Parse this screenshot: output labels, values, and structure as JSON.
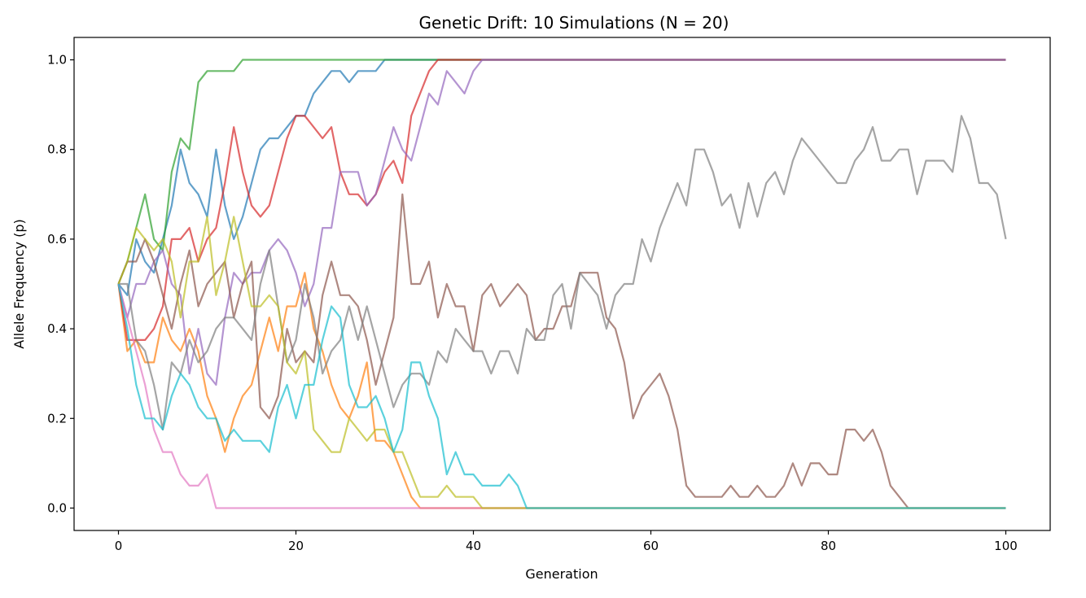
{
  "chart_data": {
    "type": "line",
    "title": "Genetic Drift: 10 Simulations (N = 20)",
    "xlabel": "Generation",
    "ylabel": "Allele Frequency (p)",
    "xlim": [
      -5,
      105
    ],
    "ylim": [
      -0.05,
      1.05
    ],
    "xticks": [
      0,
      20,
      40,
      60,
      80,
      100
    ],
    "xtick_labels": [
      "0",
      "20",
      "40",
      "60",
      "80",
      "100"
    ],
    "yticks": [
      0,
      0.2,
      0.4,
      0.6,
      0.8,
      1.0
    ],
    "ytick_labels": [
      "0.0",
      "0.2",
      "0.4",
      "0.6",
      "0.8",
      "1.0"
    ],
    "grid": false,
    "line_alpha": 0.7,
    "x_start": 0,
    "x_step": 1,
    "series": [
      {
        "color": "#1f77b4",
        "values": [
          0.5,
          0.475,
          0.6,
          0.55,
          0.525,
          0.6,
          0.675,
          0.8,
          0.725,
          0.7,
          0.65,
          0.8,
          0.675,
          0.6,
          0.65,
          0.725,
          0.8,
          0.825,
          0.825,
          0.85,
          0.875,
          0.875,
          0.925,
          0.95,
          0.975,
          0.975,
          0.95,
          0.975,
          0.975,
          0.975,
          1,
          1,
          1,
          1,
          1,
          1,
          1,
          1,
          1,
          1,
          1,
          1,
          1,
          1,
          1,
          1,
          1,
          1,
          1,
          1,
          1,
          1,
          1,
          1,
          1,
          1,
          1,
          1,
          1,
          1,
          1,
          1,
          1,
          1,
          1,
          1,
          1,
          1,
          1,
          1,
          1,
          1,
          1,
          1,
          1,
          1,
          1,
          1,
          1,
          1,
          1,
          1,
          1,
          1,
          1,
          1,
          1,
          1,
          1,
          1,
          1,
          1,
          1,
          1,
          1,
          1,
          1,
          1,
          1,
          1,
          1
        ]
      },
      {
        "color": "#ff7f0e",
        "values": [
          0.5,
          0.35,
          0.375,
          0.325,
          0.325,
          0.425,
          0.375,
          0.35,
          0.4,
          0.35,
          0.25,
          0.2,
          0.125,
          0.2,
          0.25,
          0.275,
          0.35,
          0.425,
          0.35,
          0.45,
          0.45,
          0.525,
          0.4,
          0.35,
          0.275,
          0.225,
          0.2,
          0.25,
          0.325,
          0.15,
          0.15,
          0.125,
          0.075,
          0.025,
          0,
          0,
          0,
          0,
          0,
          0,
          0,
          0,
          0,
          0,
          0,
          0,
          0,
          0,
          0,
          0,
          0,
          0,
          0,
          0,
          0,
          0,
          0,
          0,
          0,
          0,
          0,
          0,
          0,
          0,
          0,
          0,
          0,
          0,
          0,
          0,
          0,
          0,
          0,
          0,
          0,
          0,
          0,
          0,
          0,
          0,
          0,
          0,
          0,
          0,
          0,
          0,
          0,
          0,
          0,
          0,
          0,
          0,
          0,
          0,
          0,
          0,
          0,
          0,
          0,
          0,
          0
        ]
      },
      {
        "color": "#2ca02c",
        "values": [
          0.5,
          0.55,
          0.625,
          0.7,
          0.6,
          0.575,
          0.75,
          0.825,
          0.8,
          0.95,
          0.975,
          0.975,
          0.975,
          0.975,
          1,
          1,
          1,
          1,
          1,
          1,
          1,
          1,
          1,
          1,
          1,
          1,
          1,
          1,
          1,
          1,
          1,
          1,
          1,
          1,
          1,
          1,
          1,
          1,
          1,
          1,
          1,
          1,
          1,
          1,
          1,
          1,
          1,
          1,
          1,
          1,
          1,
          1,
          1,
          1,
          1,
          1,
          1,
          1,
          1,
          1,
          1,
          1,
          1,
          1,
          1,
          1,
          1,
          1,
          1,
          1,
          1,
          1,
          1,
          1,
          1,
          1,
          1,
          1,
          1,
          1,
          1,
          1,
          1,
          1,
          1,
          1,
          1,
          1,
          1,
          1,
          1,
          1,
          1,
          1,
          1,
          1,
          1,
          1,
          1,
          1,
          1
        ]
      },
      {
        "color": "#d62728",
        "values": [
          0.5,
          0.375,
          0.375,
          0.375,
          0.4,
          0.45,
          0.6,
          0.6,
          0.625,
          0.55,
          0.6,
          0.625,
          0.725,
          0.85,
          0.75,
          0.675,
          0.65,
          0.675,
          0.75,
          0.825,
          0.875,
          0.875,
          0.85,
          0.825,
          0.85,
          0.75,
          0.7,
          0.7,
          0.675,
          0.7,
          0.75,
          0.775,
          0.725,
          0.875,
          0.925,
          0.975,
          1,
          1,
          1,
          1,
          1,
          1,
          1,
          1,
          1,
          1,
          1,
          1,
          1,
          1,
          1,
          1,
          1,
          1,
          1,
          1,
          1,
          1,
          1,
          1,
          1,
          1,
          1,
          1,
          1,
          1,
          1,
          1,
          1,
          1,
          1,
          1,
          1,
          1,
          1,
          1,
          1,
          1,
          1,
          1,
          1,
          1,
          1,
          1,
          1,
          1,
          1,
          1,
          1,
          1,
          1,
          1,
          1,
          1,
          1,
          1,
          1,
          1,
          1,
          1,
          1
        ]
      },
      {
        "color": "#9467bd",
        "values": [
          0.5,
          0.425,
          0.5,
          0.5,
          0.55,
          0.575,
          0.5,
          0.475,
          0.3,
          0.4,
          0.3,
          0.275,
          0.425,
          0.525,
          0.5,
          0.525,
          0.525,
          0.575,
          0.6,
          0.575,
          0.525,
          0.45,
          0.5,
          0.625,
          0.625,
          0.75,
          0.75,
          0.75,
          0.675,
          0.7,
          0.775,
          0.85,
          0.8,
          0.775,
          0.85,
          0.925,
          0.9,
          0.975,
          0.95,
          0.925,
          0.975,
          1,
          1,
          1,
          1,
          1,
          1,
          1,
          1,
          1,
          1,
          1,
          1,
          1,
          1,
          1,
          1,
          1,
          1,
          1,
          1,
          1,
          1,
          1,
          1,
          1,
          1,
          1,
          1,
          1,
          1,
          1,
          1,
          1,
          1,
          1,
          1,
          1,
          1,
          1,
          1,
          1,
          1,
          1,
          1,
          1,
          1,
          1,
          1,
          1,
          1,
          1,
          1,
          1,
          1,
          1,
          1,
          1,
          1,
          1,
          1
        ]
      },
      {
        "color": "#8c564b",
        "values": [
          0.5,
          0.55,
          0.55,
          0.6,
          0.55,
          0.475,
          0.4,
          0.5,
          0.575,
          0.45,
          0.5,
          0.525,
          0.55,
          0.425,
          0.5,
          0.55,
          0.225,
          0.2,
          0.25,
          0.4,
          0.325,
          0.35,
          0.325,
          0.475,
          0.55,
          0.475,
          0.475,
          0.45,
          0.375,
          0.275,
          0.35,
          0.425,
          0.7,
          0.5,
          0.5,
          0.55,
          0.425,
          0.5,
          0.45,
          0.45,
          0.35,
          0.475,
          0.5,
          0.45,
          0.475,
          0.5,
          0.475,
          0.375,
          0.4,
          0.4,
          0.45,
          0.45,
          0.525,
          0.525,
          0.525,
          0.425,
          0.4,
          0.325,
          0.2,
          0.25,
          0.275,
          0.3,
          0.25,
          0.175,
          0.05,
          0.025,
          0.025,
          0.025,
          0.025,
          0.05,
          0.025,
          0.025,
          0.05,
          0.025,
          0.025,
          0.05,
          0.1,
          0.05,
          0.1,
          0.1,
          0.075,
          0.075,
          0.175,
          0.175,
          0.15,
          0.175,
          0.125,
          0.05,
          0.025,
          0,
          0,
          0,
          0,
          0,
          0,
          0,
          0,
          0,
          0,
          0,
          0
        ]
      },
      {
        "color": "#e377c2",
        "values": [
          0.5,
          0.425,
          0.35,
          0.275,
          0.175,
          0.125,
          0.125,
          0.075,
          0.05,
          0.05,
          0.075,
          0,
          0,
          0,
          0,
          0,
          0,
          0,
          0,
          0,
          0,
          0,
          0,
          0,
          0,
          0,
          0,
          0,
          0,
          0,
          0,
          0,
          0,
          0,
          0,
          0,
          0,
          0,
          0,
          0,
          0,
          0,
          0,
          0,
          0,
          0,
          0,
          0,
          0,
          0,
          0,
          0,
          0,
          0,
          0,
          0,
          0,
          0,
          0,
          0,
          0,
          0,
          0,
          0,
          0,
          0,
          0,
          0,
          0,
          0,
          0,
          0,
          0,
          0,
          0,
          0,
          0,
          0,
          0,
          0,
          0,
          0,
          0,
          0,
          0,
          0,
          0,
          0,
          0,
          0,
          0,
          0,
          0,
          0,
          0,
          0,
          0,
          0,
          0,
          0,
          0
        ]
      },
      {
        "color": "#7f7f7f",
        "values": [
          0.5,
          0.5,
          0.375,
          0.35,
          0.275,
          0.175,
          0.325,
          0.3,
          0.375,
          0.325,
          0.35,
          0.4,
          0.425,
          0.425,
          0.4,
          0.375,
          0.5,
          0.575,
          0.45,
          0.325,
          0.375,
          0.5,
          0.425,
          0.3,
          0.35,
          0.375,
          0.45,
          0.375,
          0.45,
          0.375,
          0.3,
          0.225,
          0.275,
          0.3,
          0.3,
          0.275,
          0.35,
          0.325,
          0.4,
          0.375,
          0.35,
          0.35,
          0.3,
          0.35,
          0.35,
          0.3,
          0.4,
          0.375,
          0.375,
          0.475,
          0.5,
          0.4,
          0.525,
          0.5,
          0.475,
          0.4,
          0.475,
          0.5,
          0.5,
          0.6,
          0.55,
          0.625,
          0.675,
          0.725,
          0.675,
          0.8,
          0.8,
          0.75,
          0.675,
          0.7,
          0.625,
          0.725,
          0.65,
          0.725,
          0.75,
          0.7,
          0.775,
          0.825,
          0.8,
          0.775,
          0.75,
          0.725,
          0.725,
          0.775,
          0.8,
          0.85,
          0.775,
          0.775,
          0.8,
          0.8,
          0.7,
          0.775,
          0.775,
          0.775,
          0.75,
          0.875,
          0.825,
          0.725,
          0.725,
          0.7,
          0.6
        ]
      },
      {
        "color": "#bcbd22",
        "values": [
          0.5,
          0.55,
          0.625,
          0.6,
          0.575,
          0.6,
          0.55,
          0.425,
          0.55,
          0.55,
          0.65,
          0.475,
          0.55,
          0.65,
          0.55,
          0.45,
          0.45,
          0.475,
          0.45,
          0.325,
          0.3,
          0.35,
          0.175,
          0.15,
          0.125,
          0.125,
          0.2,
          0.175,
          0.15,
          0.175,
          0.175,
          0.125,
          0.125,
          0.075,
          0.025,
          0.025,
          0.025,
          0.05,
          0.025,
          0.025,
          0.025,
          0,
          0,
          0,
          0,
          0,
          0,
          0,
          0,
          0,
          0,
          0,
          0,
          0,
          0,
          0,
          0,
          0,
          0,
          0,
          0,
          0,
          0,
          0,
          0,
          0,
          0,
          0,
          0,
          0,
          0,
          0,
          0,
          0,
          0,
          0,
          0,
          0,
          0,
          0,
          0,
          0,
          0,
          0,
          0,
          0,
          0,
          0,
          0,
          0,
          0,
          0,
          0,
          0,
          0,
          0,
          0,
          0,
          0,
          0,
          0
        ]
      },
      {
        "color": "#17becf",
        "values": [
          0.5,
          0.4,
          0.275,
          0.2,
          0.2,
          0.175,
          0.25,
          0.3,
          0.275,
          0.225,
          0.2,
          0.2,
          0.15,
          0.175,
          0.15,
          0.15,
          0.15,
          0.125,
          0.225,
          0.275,
          0.2,
          0.275,
          0.275,
          0.375,
          0.45,
          0.425,
          0.275,
          0.225,
          0.225,
          0.25,
          0.2,
          0.125,
          0.175,
          0.325,
          0.325,
          0.25,
          0.2,
          0.075,
          0.125,
          0.075,
          0.075,
          0.05,
          0.05,
          0.05,
          0.075,
          0.05,
          0,
          0,
          0,
          0,
          0,
          0,
          0,
          0,
          0,
          0,
          0,
          0,
          0,
          0,
          0,
          0,
          0,
          0,
          0,
          0,
          0,
          0,
          0,
          0,
          0,
          0,
          0,
          0,
          0,
          0,
          0,
          0,
          0,
          0,
          0,
          0,
          0,
          0,
          0,
          0,
          0,
          0,
          0,
          0,
          0,
          0,
          0,
          0,
          0,
          0,
          0,
          0,
          0,
          0,
          0
        ]
      }
    ]
  }
}
